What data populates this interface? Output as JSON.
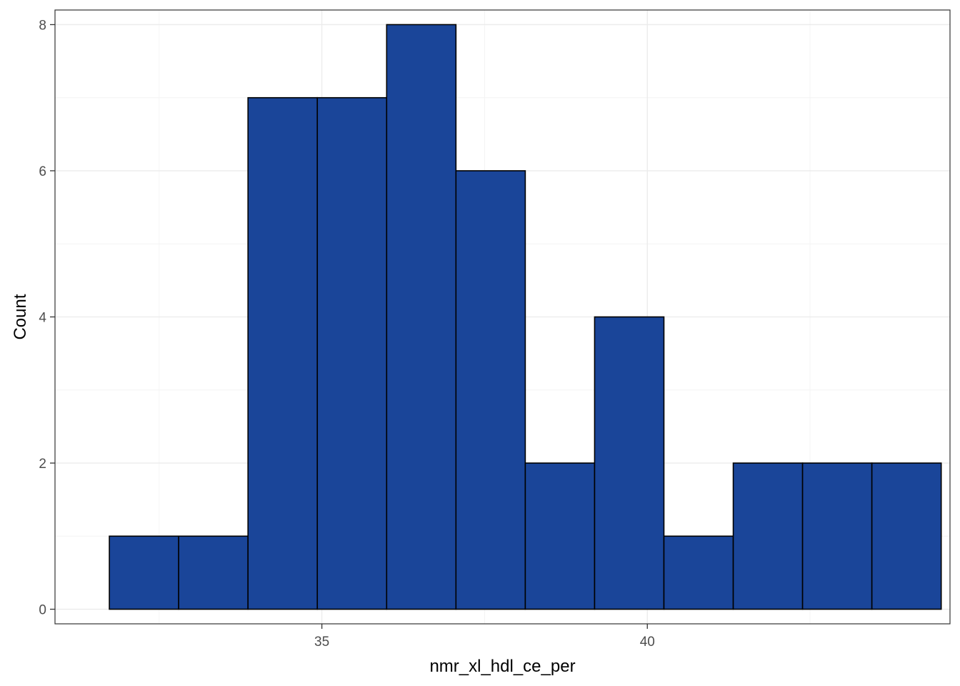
{
  "chart_data": {
    "type": "bar",
    "subtype": "histogram",
    "title": "",
    "xlabel": "nmr_xl_hdl_ce_per",
    "ylabel": "Count",
    "xlim": [
      30.9,
      44.65
    ],
    "ylim": [
      -0.2,
      8.2
    ],
    "x_ticks": [
      35,
      40
    ],
    "y_ticks": [
      0,
      2,
      4,
      6,
      8
    ],
    "bin_width": 1.065,
    "bins": [
      {
        "start": 31.735,
        "end": 32.8,
        "count": 1
      },
      {
        "start": 32.8,
        "end": 33.865,
        "count": 1
      },
      {
        "start": 33.865,
        "end": 34.93,
        "count": 7
      },
      {
        "start": 34.93,
        "end": 35.995,
        "count": 7
      },
      {
        "start": 35.995,
        "end": 37.06,
        "count": 8
      },
      {
        "start": 37.06,
        "end": 38.125,
        "count": 6
      },
      {
        "start": 38.125,
        "end": 39.19,
        "count": 2
      },
      {
        "start": 39.19,
        "end": 40.255,
        "count": 4
      },
      {
        "start": 40.255,
        "end": 41.32,
        "count": 1
      },
      {
        "start": 41.32,
        "end": 42.385,
        "count": 2
      },
      {
        "start": 42.385,
        "end": 43.45,
        "count": 2
      },
      {
        "start": 43.45,
        "end": 44.515,
        "count": 2
      }
    ],
    "grid": true,
    "legend": "none",
    "colors": {
      "bar_fill": "#1a4599",
      "bar_stroke": "#000000",
      "grid_major": "#ebebeb",
      "grid_minor": "#f4f4f4",
      "panel_border": "#333333"
    }
  }
}
